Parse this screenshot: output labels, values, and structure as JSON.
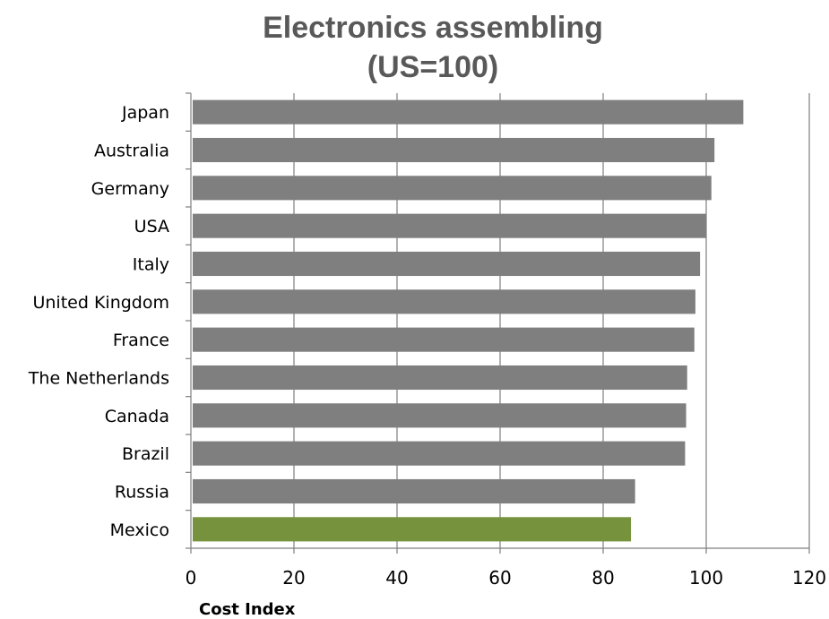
{
  "chart_data": {
    "type": "bar",
    "orientation": "horizontal",
    "title": "Electronics assembling",
    "subtitle": "(US=100)",
    "xlabel": "Cost Index",
    "ylabel": "",
    "xlim": [
      0,
      120
    ],
    "xticks": [
      0,
      20,
      40,
      60,
      80,
      100,
      120
    ],
    "grid": true,
    "categories": [
      "Japan",
      "Australia",
      "Germany",
      "USA",
      "Italy",
      "United Kingdom",
      "France",
      "The Netherlands",
      "Canada",
      "Brazil",
      "Russia",
      "Mexico"
    ],
    "values": [
      107.2,
      101.6,
      101.0,
      100.0,
      98.8,
      97.9,
      97.7,
      96.3,
      96.1,
      95.9,
      86.2,
      85.4
    ],
    "colors": {
      "default": "#7f7f7f",
      "highlight": "#76923c",
      "highlight_category": "Mexico"
    }
  }
}
